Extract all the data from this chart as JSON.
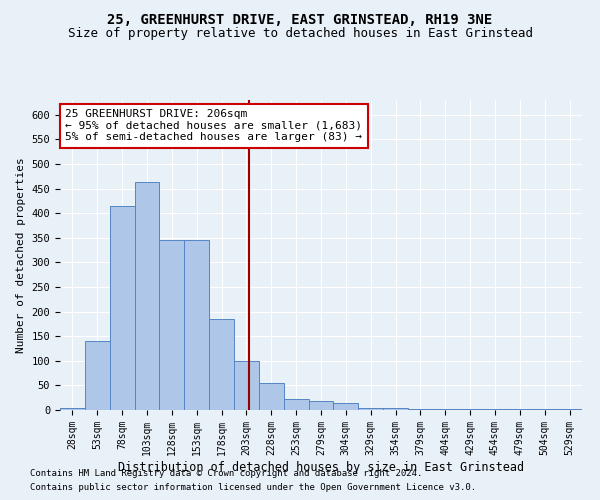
{
  "title1": "25, GREENHURST DRIVE, EAST GRINSTEAD, RH19 3NE",
  "title2": "Size of property relative to detached houses in East Grinstead",
  "xlabel": "Distribution of detached houses by size in East Grinstead",
  "ylabel": "Number of detached properties",
  "footnote1": "Contains HM Land Registry data © Crown copyright and database right 2024.",
  "footnote2": "Contains public sector information licensed under the Open Government Licence v3.0.",
  "bar_labels": [
    "28sqm",
    "53sqm",
    "78sqm",
    "103sqm",
    "128sqm",
    "153sqm",
    "178sqm",
    "203sqm",
    "228sqm",
    "253sqm",
    "279sqm",
    "304sqm",
    "329sqm",
    "354sqm",
    "379sqm",
    "404sqm",
    "429sqm",
    "454sqm",
    "479sqm",
    "504sqm",
    "529sqm"
  ],
  "bar_values": [
    5,
    140,
    415,
    463,
    345,
    345,
    185,
    100,
    55,
    22,
    18,
    15,
    5,
    5,
    3,
    3,
    3,
    3,
    3,
    3,
    3
  ],
  "bar_color": "#aec6e8",
  "bar_edge_color": "#5585c5",
  "bg_color": "#e8f0f8",
  "grid_color": "#ffffff",
  "vline_color": "#990000",
  "annotation_text": "25 GREENHURST DRIVE: 206sqm\n← 95% of detached houses are smaller (1,683)\n5% of semi-detached houses are larger (83) →",
  "annotation_box_color": "#ffffff",
  "annotation_box_edge": "#cc0000",
  "ylim": [
    0,
    630
  ],
  "yticks": [
    0,
    50,
    100,
    150,
    200,
    250,
    300,
    350,
    400,
    450,
    500,
    550,
    600
  ],
  "title1_fontsize": 10,
  "title2_fontsize": 9,
  "xlabel_fontsize": 8.5,
  "ylabel_fontsize": 8,
  "annotation_fontsize": 8,
  "footnote_fontsize": 6.5
}
